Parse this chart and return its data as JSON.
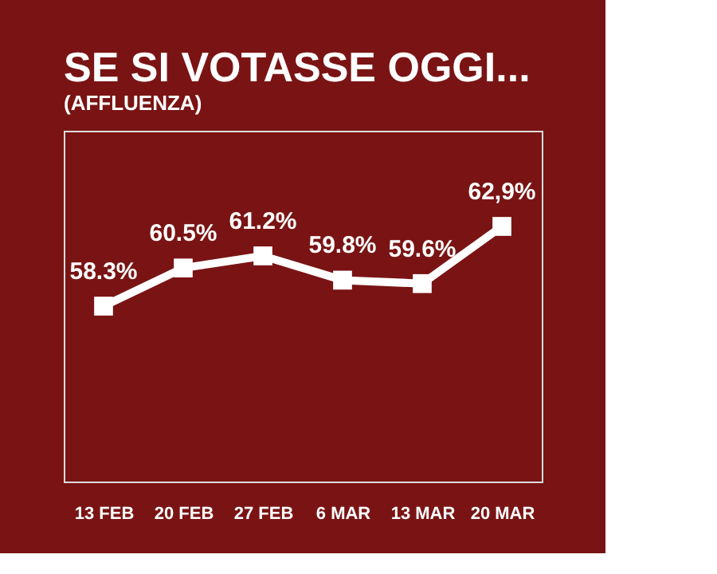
{
  "chart_data": {
    "type": "line",
    "title": "SE SI VOTASSE OGGI...",
    "subtitle": "(AFFLUENZA)",
    "categories": [
      "13 FEB",
      "20 FEB",
      "27 FEB",
      "6 MAR",
      "13 MAR",
      "20 MAR"
    ],
    "series": [
      {
        "color": "#ffffff",
        "values": [
          58.3,
          60.5,
          61.2,
          59.8,
          59.6,
          62.9
        ],
        "value_labels": [
          "58.3%",
          "60.5%",
          "61.2%",
          "59.8%",
          "59.6%",
          "62,9%"
        ]
      }
    ],
    "marker": "square",
    "line_style": "solid",
    "grid": false
  }
}
